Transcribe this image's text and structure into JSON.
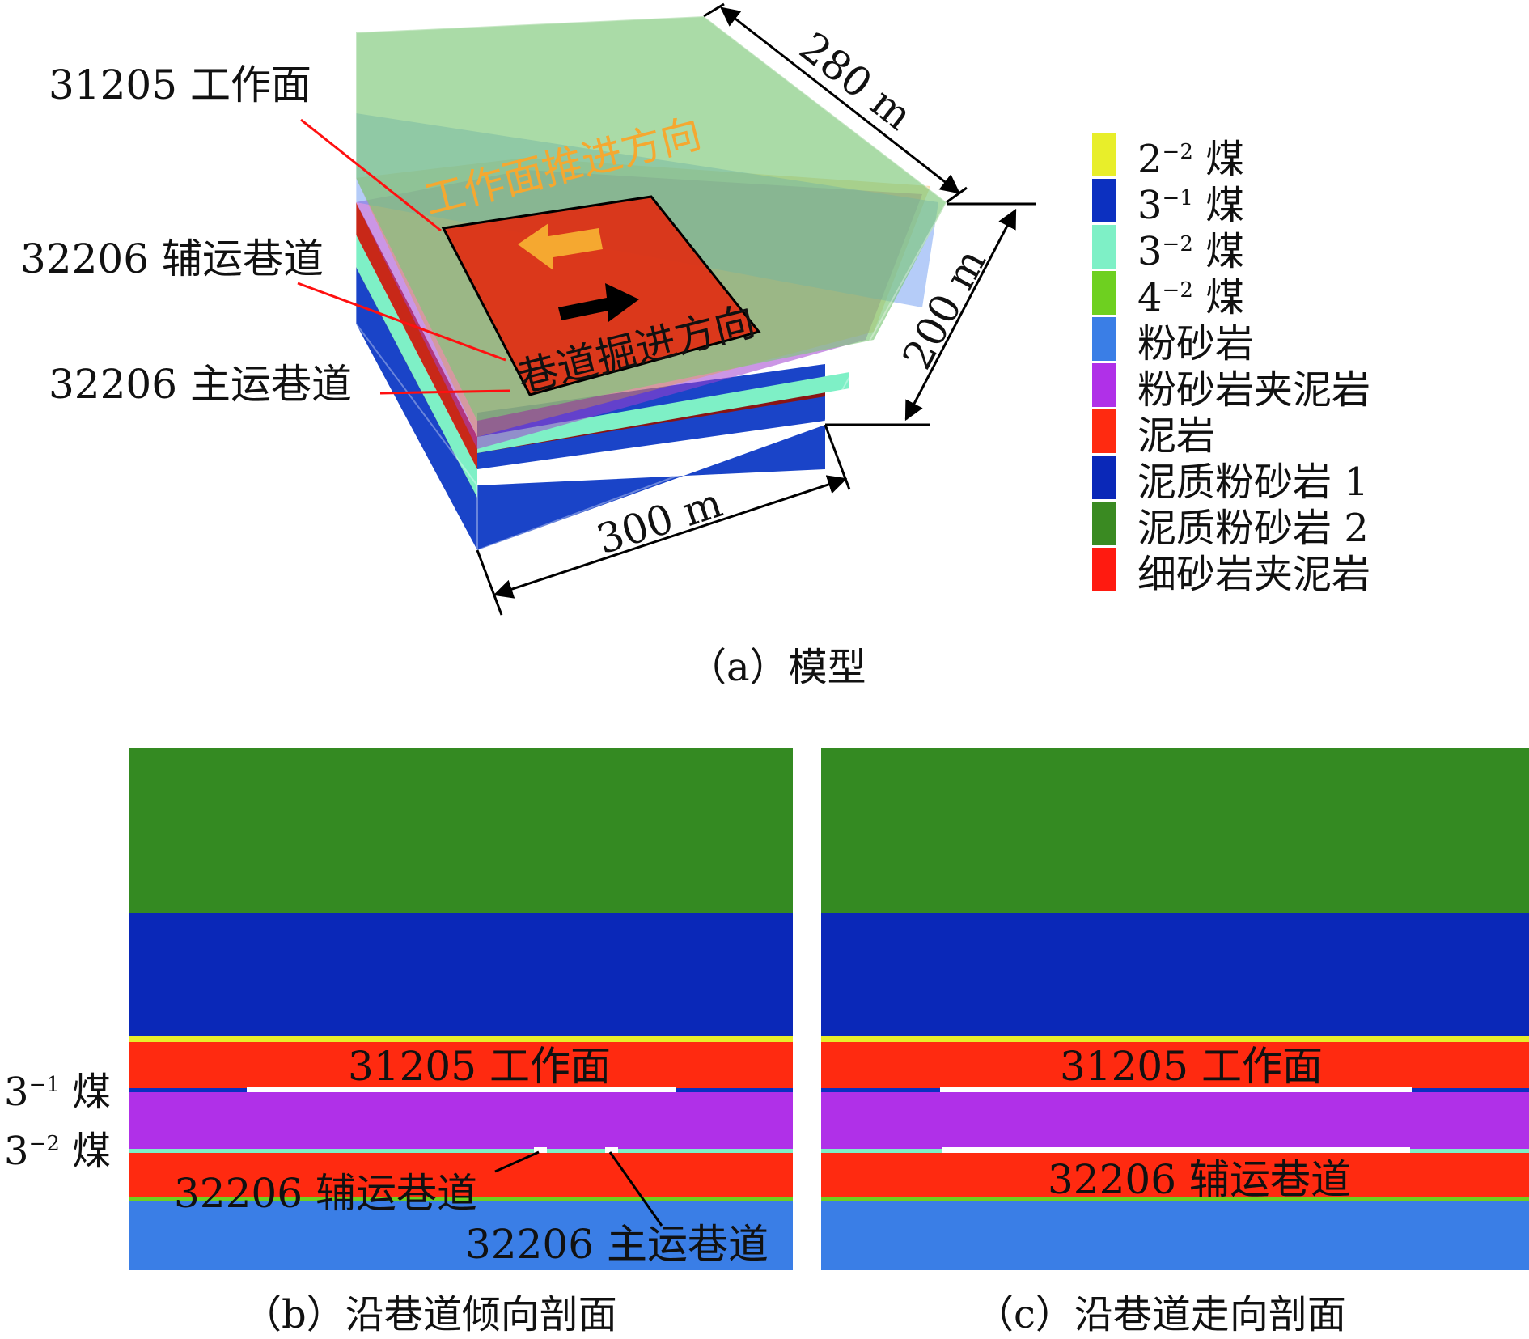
{
  "panel_a": {
    "caption": "（a）模型",
    "dimensions": {
      "depth": "280 m",
      "height": "200 m",
      "width": "300 m"
    },
    "labels": {
      "workface": "31205 工作面",
      "aux_roadway": "32206 辅运巷道",
      "main_roadway": "32206 主运巷道",
      "advance_direction": "工作面推进方向",
      "excavation_direction": "巷道掘进方向"
    }
  },
  "legend": [
    {
      "base": "2",
      "sup": "−2",
      "suffix": " 煤",
      "color": "#e8ee2a"
    },
    {
      "base": "3",
      "sup": "−1",
      "suffix": " 煤",
      "color": "#0c30c0"
    },
    {
      "base": "3",
      "sup": "−2",
      "suffix": " 煤",
      "color": "#7ef0c6"
    },
    {
      "base": "4",
      "sup": "−2",
      "suffix": " 煤",
      "color": "#6ed020"
    },
    {
      "base": "粉砂岩",
      "sup": "",
      "suffix": "",
      "color": "#3a7ee6"
    },
    {
      "base": "粉砂岩夹泥岩",
      "sup": "",
      "suffix": "",
      "color": "#b030e8"
    },
    {
      "base": "泥岩",
      "sup": "",
      "suffix": "",
      "color": "#ff2a10"
    },
    {
      "base": "泥质粉砂岩 1",
      "sup": "",
      "suffix": "",
      "color": "#0a28b8"
    },
    {
      "base": "泥质粉砂岩 2",
      "sup": "",
      "suffix": "",
      "color": "#3a8a22"
    },
    {
      "base": "细砂岩夹泥岩",
      "sup": "",
      "suffix": "",
      "color": "#ff1a10"
    }
  ],
  "panel_b": {
    "caption": "（b）沿巷道倾向剖面",
    "workface": "31205 工作面",
    "aux_roadway": "32206 辅运巷道",
    "main_roadway": "32206 主运巷道"
  },
  "panel_c": {
    "caption": "（c）沿巷道走向剖面",
    "workface": "31205 工作面",
    "aux_roadway": "32206 辅运巷道"
  },
  "side_labels": {
    "seam_3_1": {
      "base": "3",
      "sup": "−1",
      "suffix": " 煤"
    },
    "seam_3_2": {
      "base": "3",
      "sup": "−2",
      "suffix": " 煤"
    }
  }
}
